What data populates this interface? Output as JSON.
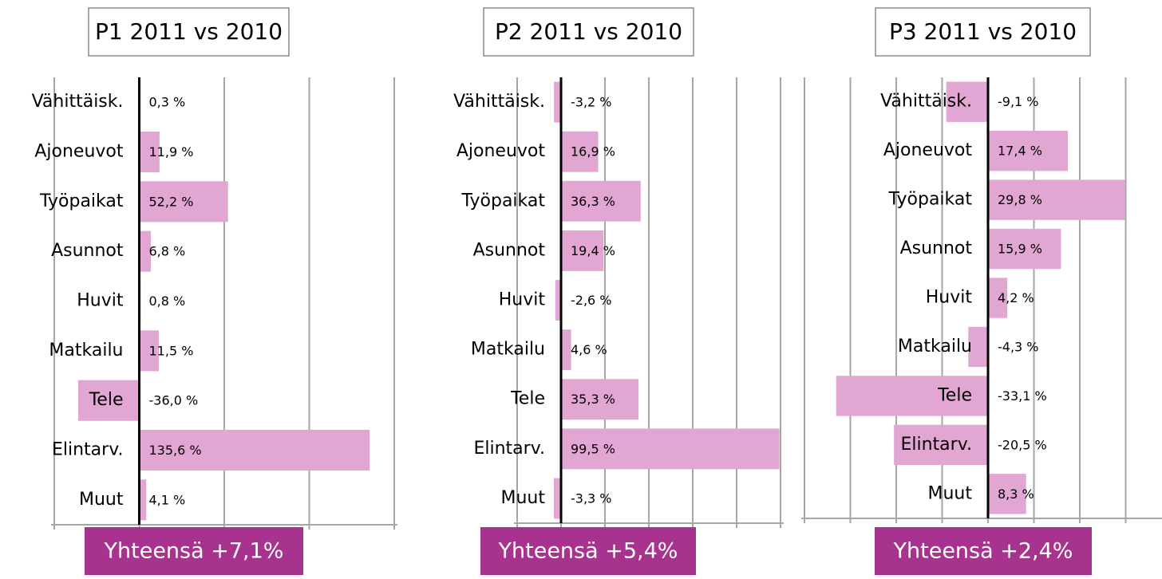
{
  "chart_data": [
    {
      "type": "barh",
      "title": "P1 2011 vs 2010",
      "categories": [
        "Vähittäisk.",
        "Ajoneuvot",
        "Työpaikat",
        "Asunnot",
        "Huvit",
        "Matkailu",
        "Tele",
        "Elintarv.",
        "Muut"
      ],
      "values": [
        0.3,
        11.9,
        52.2,
        6.8,
        0.8,
        11.5,
        -36.0,
        135.6,
        4.1
      ],
      "value_labels": [
        "0,3 %",
        "11,9 %",
        "52,2 %",
        "6,8 %",
        "0,8 %",
        "11,5 %",
        "-36,0 %",
        "135,6 %",
        "4,1 %"
      ],
      "color": "#e2a6d2",
      "xlim": [
        -50,
        150
      ],
      "xticks": [
        -50,
        0,
        50,
        100,
        150
      ],
      "grid": true,
      "total": "Yhteensä +7,1%"
    },
    {
      "type": "barh",
      "title": "P2 2011 vs 2010",
      "categories": [
        "Vähittäisk.",
        "Ajoneuvot",
        "Työpaikat",
        "Asunnot",
        "Huvit",
        "Matkailu",
        "Tele",
        "Elintarv.",
        "Muut"
      ],
      "values": [
        -3.2,
        16.9,
        36.3,
        19.4,
        -2.6,
        4.6,
        35.3,
        99.5,
        -3.3
      ],
      "value_labels": [
        "-3,2 %",
        "16,9 %",
        "36,3 %",
        "19,4 %",
        "-2,6 %",
        "4,6 %",
        "35,3 %",
        "99,5 %",
        "-3,3 %"
      ],
      "color": "#e2a6d2",
      "xlim": [
        -20,
        100
      ],
      "xticks": [
        -20,
        0,
        20,
        40,
        60,
        80,
        100
      ],
      "grid": true,
      "total": "Yhteensä +5,4%"
    },
    {
      "type": "barh",
      "title": "P3 2011 vs 2010",
      "categories": [
        "Vähittäisk.",
        "Ajoneuvot",
        "Työpaikat",
        "Asunnot",
        "Huvit",
        "Matkailu",
        "Tele",
        "Elintarv.",
        "Muut"
      ],
      "values": [
        -9.1,
        17.4,
        29.8,
        15.9,
        4.2,
        -4.3,
        -33.1,
        -20.5,
        8.3
      ],
      "value_labels": [
        "-9,1 %",
        "17,4 %",
        "29,8 %",
        "15,9 %",
        "4,2 %",
        "-4,3 %",
        "-33,1 %",
        "-20,5 %",
        "8,3 %"
      ],
      "color": "#e2a6d2",
      "xlim": [
        -40,
        40
      ],
      "xticks": [
        -40,
        -30,
        -20,
        -10,
        0,
        10,
        20,
        30,
        40
      ],
      "grid": true,
      "total": "Yhteensä +2,4%"
    }
  ]
}
